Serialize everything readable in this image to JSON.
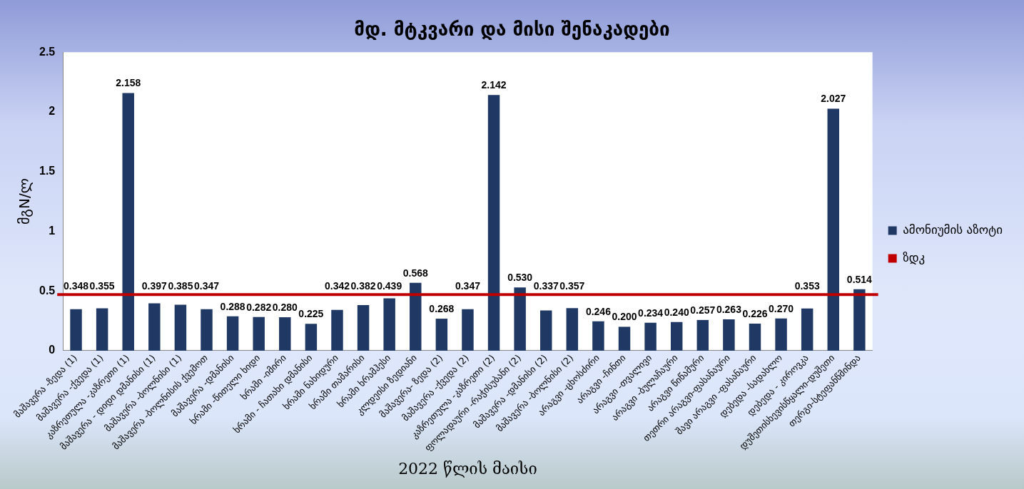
{
  "chart_data": {
    "type": "bar",
    "title": "მდ. მტკვარი და მისი შენაკადები",
    "xlabel": "2022 წლის მაისი",
    "ylabel": "მგN/ლ",
    "categories": [
      "მაშავერა -ზედა (1)",
      "მაშავერა -ქვედა (1)",
      "კაზრეთულა -კაზრეთი (1)",
      "მაშავერა - დიდი დმანისი (1)",
      "მაშავერა -ბოლნისი (1)",
      "მაშავერა -ბოლნისის ქვემოთ",
      "მაშავერა -დმანისი",
      "ხრამი -წითელი ხიდი",
      "ხრამი -იმირი",
      "ხრამი - ჩათახი დმანისი",
      "ხრამი ნახიდური",
      "ხრამი თამარისი",
      "ხრამი ხრამჰესი",
      "კლდეისი ზედიანი",
      "მაშავერა- ზედა (2)",
      "მაშავერა -ქვედა (2)",
      "კაზრეთულა -კაზრეთი (2)",
      "ფოლადაური -რაჭისუბანი (2)",
      "მაშავერა -დმანისი (2)",
      "მაშავერა -ბოლნისი (2)",
      "არაგვი -ცხოსძირი",
      "არაგვი -ჩინთი",
      "არაგვი -თვალივი",
      "არაგვი -ბულაჩაური",
      "არაგვი წიწამური",
      "თეთრი არაგვი-ფასანაური",
      "შავი არაგვი -ფასანაური",
      "დებედა -სადახლო",
      "დებედა - კიროვკა",
      "დუშეთისხევისწყალი-დუშეთი",
      "თერგი-სტეფანწმინდა"
    ],
    "series": [
      {
        "name": "ამონიუმის აზოტი",
        "color": "#1f3864",
        "values": [
          0.348,
          0.355,
          2.158,
          0.397,
          0.385,
          0.347,
          0.288,
          0.282,
          0.28,
          0.225,
          0.342,
          0.382,
          0.439,
          0.568,
          0.268,
          0.347,
          2.142,
          0.53,
          0.337,
          0.357,
          0.246,
          0.2,
          0.234,
          0.24,
          0.257,
          0.263,
          0.226,
          0.27,
          0.353,
          2.027,
          0.514
        ]
      }
    ],
    "ref_lines": [
      {
        "axis": "y",
        "value": 0.47,
        "label": "ზდკ",
        "color": "#c00000"
      }
    ],
    "value_labels": [
      "0.348",
      "0.355",
      "2.158",
      "0.397",
      "0.385",
      "0.347",
      "0.288",
      "0.282",
      "0.280",
      "0.225",
      "0.342",
      "0.382",
      "0.439",
      "0.568",
      "0.268",
      "0.347",
      "2.142",
      "0.530",
      "0.337",
      "0.357",
      "0.246",
      "0.200",
      "0.234",
      "0.240",
      "0.257",
      "0.263",
      "0.226",
      "0.270",
      "0.353",
      "2.027",
      "0.514"
    ],
    "ylim": [
      0,
      2.5
    ],
    "yticks": [
      0,
      0.5,
      1,
      1.5,
      2,
      2.5
    ],
    "grid": false,
    "legend": "right"
  }
}
